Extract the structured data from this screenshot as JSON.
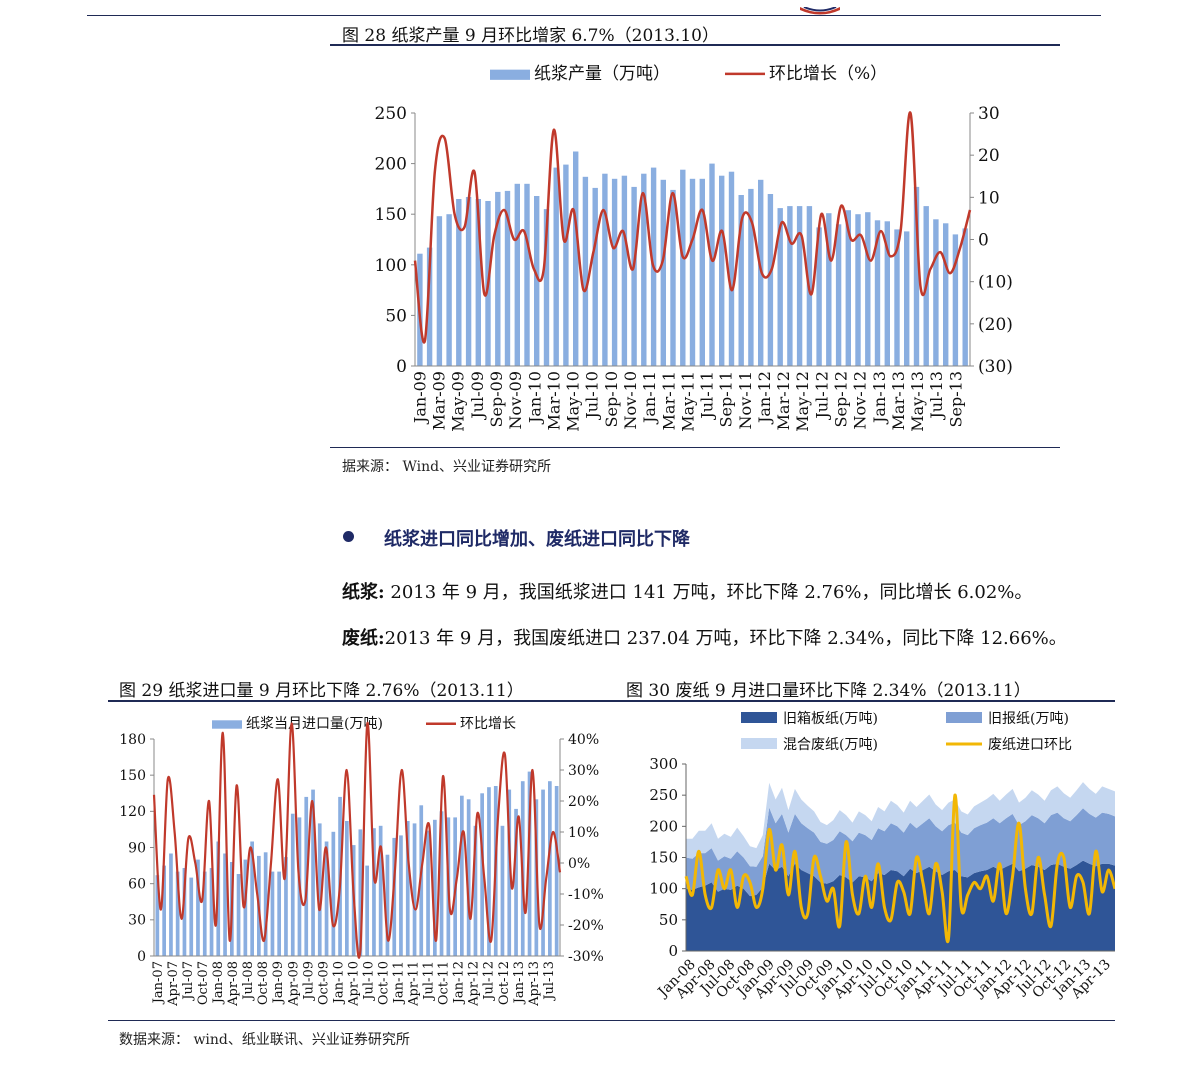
{
  "header": {
    "logo": "logo-swoosh"
  },
  "fig28": {
    "caption": "图 28  纸浆产量 9 月环比增家 6.7%（2013.10）",
    "source": "据来源：  Wind、兴业证券研究所"
  },
  "section": {
    "heading": "纸浆进口同比增加、废纸进口同比下降",
    "p1_bold": "纸浆:",
    "p1_text": " 2013 年 9 月，我国纸浆进口 141 万吨，环比下降 2.76%，同比增长 6.02%。",
    "p2_bold": "废纸:",
    "p2_text": "2013 年 9 月，我国废纸进口 237.04  万吨，环比下降 2.34%，同比下降 12.66%。"
  },
  "fig29": {
    "caption": "图 29 纸浆进口量 9 月环比下降 2.76%（2013.11）"
  },
  "fig30": {
    "caption": "图 30 废纸 9 月进口量环比下降 2.34%（2013.11）"
  },
  "footer_source": "数据来源：  wind、纸业联讯、兴业证券研究所",
  "chart_data": [
    {
      "id": "fig28",
      "type": "bar+line",
      "legend_position": "top",
      "grid": false,
      "x": [
        "Jan-09",
        "Feb-09",
        "Mar-09",
        "Apr-09",
        "May-09",
        "Jun-09",
        "Jul-09",
        "Aug-09",
        "Sep-09",
        "Oct-09",
        "Nov-09",
        "Dec-09",
        "Jan-10",
        "Feb-10",
        "Mar-10",
        "Apr-10",
        "May-10",
        "Jun-10",
        "Jul-10",
        "Aug-10",
        "Sep-10",
        "Oct-10",
        "Nov-10",
        "Dec-10",
        "Jan-11",
        "Feb-11",
        "Mar-11",
        "Apr-11",
        "May-11",
        "Jun-11",
        "Jul-11",
        "Aug-11",
        "Sep-11",
        "Oct-11",
        "Nov-11",
        "Dec-11",
        "Jan-12",
        "Feb-12",
        "Mar-12",
        "Apr-12",
        "May-12",
        "Jun-12",
        "Jul-12",
        "Aug-12",
        "Sep-12",
        "Oct-12",
        "Nov-12",
        "Dec-12",
        "Jan-13",
        "Feb-13",
        "Mar-13",
        "Apr-13",
        "May-13",
        "Jun-13",
        "Jul-13",
        "Aug-13",
        "Sep-13"
      ],
      "x_tick_labels": [
        "Jan-09",
        "Mar-09",
        "May-09",
        "Jul-09",
        "Sep-09",
        "Nov-09",
        "Jan-10",
        "Mar-10",
        "May-10",
        "Jul-10",
        "Sep-10",
        "Nov-10",
        "Jan-11",
        "Mar-11",
        "May-11",
        "Jul-11",
        "Sep-11",
        "Nov-11",
        "Jan-12",
        "Mar-12",
        "May-12",
        "Jul-12",
        "Sep-12",
        "Nov-12",
        "Jan-13",
        "Mar-13",
        "May-13",
        "Jul-13",
        "Sep-13"
      ],
      "y_left": {
        "range": [
          0,
          250
        ],
        "ticks": [
          "0",
          "50",
          "100",
          "150",
          "200",
          "250"
        ]
      },
      "y_right": {
        "range": [
          -30,
          30
        ],
        "ticks": [
          "(30)",
          "(20)",
          "(10)",
          "0",
          "10",
          "20",
          "30"
        ]
      },
      "series": [
        {
          "name": "纸浆产量（万吨）",
          "kind": "bar",
          "axis": "left",
          "color": "#8aaee0",
          "values": [
            111,
            117,
            148,
            150,
            165,
            167,
            165,
            163,
            172,
            173,
            180,
            180,
            168,
            155,
            196,
            199,
            212,
            187,
            176,
            190,
            185,
            188,
            177,
            190,
            196,
            184,
            174,
            194,
            185,
            185,
            200,
            188,
            192,
            169,
            175,
            184,
            170,
            156,
            158,
            158,
            158,
            137,
            151,
            140,
            154,
            150,
            152,
            144,
            143,
            135,
            133,
            177,
            158,
            145,
            141,
            130,
            136
          ]
        },
        {
          "name": "环比增长（%）",
          "kind": "line",
          "axis": "right",
          "color": "#c0392b",
          "values": [
            -5,
            -24,
            16,
            24,
            6,
            3,
            16,
            -13,
            1,
            7,
            0,
            2,
            -7,
            -7,
            26,
            0,
            7,
            -12,
            -3,
            7,
            -2,
            2,
            -7,
            11,
            -6,
            -5,
            11,
            -4,
            0,
            7,
            -5,
            2,
            -12,
            5,
            4,
            -8,
            -7,
            4,
            -1,
            1,
            -13,
            6,
            -5,
            8,
            0,
            1,
            -5,
            2,
            -4,
            2,
            30,
            -11,
            -7,
            -3,
            -8,
            -2,
            7
          ]
        }
      ]
    },
    {
      "id": "fig29",
      "type": "bar+line",
      "legend_position": "top",
      "grid": false,
      "x_tick_labels": [
        "Jan-07",
        "Apr-07",
        "Jul-07",
        "Oct-07",
        "Jan-08",
        "Apr-08",
        "Jul-08",
        "Oct-08",
        "Jan-09",
        "Apr-09",
        "Jul-09",
        "Oct-09",
        "Jan-10",
        "Apr-10",
        "Jul-10",
        "Oct-10",
        "Jan-11",
        "Apr-11",
        "Jul-11",
        "Oct-11",
        "Jan-12",
        "Apr-12",
        "Jul-12",
        "Oct-12",
        "Jan-13",
        "Apr-13",
        "Jul-13"
      ],
      "y_left": {
        "range": [
          0,
          180
        ],
        "ticks": [
          "0",
          "30",
          "60",
          "90",
          "120",
          "150",
          "180"
        ]
      },
      "y_right": {
        "range": [
          -30,
          40
        ],
        "ticks": [
          "-30%",
          "-20%",
          "-10%",
          "0%",
          "10%",
          "20%",
          "30%",
          "40%"
        ]
      },
      "series": [
        {
          "name": "纸浆当月进口量(万吨)",
          "kind": "bar",
          "axis": "left",
          "color": "#8aaee0",
          "values": [
            67,
            75,
            85,
            70,
            73,
            65,
            80,
            70,
            73,
            95,
            85,
            78,
            68,
            80,
            95,
            83,
            86,
            70,
            70,
            82,
            118,
            115,
            132,
            138,
            110,
            95,
            103,
            132,
            112,
            92,
            105,
            75,
            106,
            108,
            84,
            98,
            100,
            112,
            110,
            125,
            104,
            113,
            120,
            115,
            115,
            133,
            130,
            108,
            135,
            140,
            141,
            108,
            138,
            122,
            145,
            153,
            130,
            138,
            145,
            141
          ]
        },
        {
          "name": "环比增长",
          "kind": "line",
          "axis": "right",
          "color": "#c0392b",
          "values": [
            22,
            -15,
            27,
            10,
            -18,
            8,
            0,
            -12,
            20,
            -20,
            42,
            -25,
            25,
            -14,
            5,
            -10,
            -25,
            0,
            27,
            -5,
            45,
            -3,
            -12,
            20,
            -15,
            5,
            -20,
            -8,
            30,
            -10,
            -28,
            45,
            -5,
            5,
            -25,
            -3,
            30,
            0,
            -15,
            0,
            12,
            -25,
            28,
            -15,
            -5,
            10,
            -18,
            16,
            -5,
            -25,
            15,
            35,
            -8,
            15,
            -16,
            30,
            -20,
            -5,
            10,
            -3
          ]
        }
      ]
    },
    {
      "id": "fig30",
      "type": "area+line",
      "legend_position": "top",
      "grid": false,
      "x_tick_labels": [
        "Jan-08",
        "Apr-08",
        "Jul-08",
        "Oct-08",
        "Jan-09",
        "Apr-09",
        "Jul-09",
        "Oct-09",
        "Jan-10",
        "Apr-10",
        "Jul-10",
        "Oct-10",
        "Jan-11",
        "Apr-11",
        "Jul-11",
        "Oct-11",
        "Jan-12",
        "Apr-12",
        "Jul-12",
        "Oct-12",
        "Jan-13",
        "Apr-13"
      ],
      "y": {
        "range": [
          0,
          300
        ],
        "ticks": [
          "0",
          "50",
          "100",
          "150",
          "200",
          "250",
          "300"
        ]
      },
      "series": [
        {
          "name": "旧箱板纸(万吨)",
          "kind": "area",
          "color": "#2f5597",
          "values": [
            100,
            98,
            102,
            105,
            110,
            95,
            100,
            98,
            105,
            100,
            88,
            90,
            102,
            140,
            130,
            135,
            120,
            140,
            130,
            125,
            120,
            110,
            108,
            112,
            122,
            118,
            110,
            120,
            118,
            112,
            125,
            122,
            130,
            128,
            120,
            132,
            125,
            130,
            135,
            128,
            122,
            128,
            130,
            120,
            118,
            125,
            128,
            130,
            135,
            130,
            135,
            140,
            128,
            132,
            138,
            135,
            130,
            138,
            140,
            135,
            132,
            138,
            145,
            140,
            136,
            140,
            140,
            137
          ]
        },
        {
          "name": "旧报纸(万吨)",
          "kind": "area",
          "color": "#7f9fd4",
          "values": [
            50,
            50,
            55,
            52,
            55,
            50,
            52,
            50,
            55,
            50,
            48,
            45,
            50,
            90,
            75,
            85,
            70,
            80,
            75,
            72,
            70,
            65,
            64,
            66,
            70,
            68,
            66,
            70,
            68,
            66,
            72,
            70,
            75,
            72,
            70,
            74,
            72,
            75,
            78,
            72,
            70,
            74,
            76,
            70,
            68,
            72,
            74,
            76,
            78,
            75,
            78,
            80,
            74,
            76,
            80,
            78,
            75,
            80,
            82,
            78,
            76,
            80,
            84,
            80,
            78,
            82,
            80,
            79
          ]
        },
        {
          "name": "混合废纸(万吨)",
          "kind": "area",
          "color": "#c5d7f0",
          "values": [
            30,
            32,
            36,
            36,
            40,
            35,
            36,
            35,
            38,
            34,
            32,
            30,
            34,
            40,
            38,
            42,
            36,
            40,
            38,
            36,
            34,
            32,
            30,
            32,
            34,
            32,
            30,
            34,
            32,
            30,
            34,
            32,
            36,
            34,
            32,
            35,
            34,
            36,
            38,
            35,
            34,
            36,
            37,
            34,
            33,
            35,
            36,
            38,
            39,
            36,
            38,
            40,
            36,
            38,
            40,
            38,
            36,
            40,
            42,
            40,
            38,
            40,
            42,
            40,
            38,
            42,
            40,
            40
          ]
        },
        {
          "name": "废纸进口环比",
          "kind": "line",
          "color": "#f2b705",
          "values": [
            120,
            90,
            160,
            90,
            70,
            130,
            100,
            130,
            70,
            120,
            110,
            70,
            100,
            195,
            130,
            170,
            90,
            160,
            70,
            60,
            150,
            120,
            80,
            100,
            40,
            175,
            90,
            60,
            120,
            70,
            140,
            70,
            50,
            110,
            95,
            60,
            150,
            110,
            60,
            140,
            95,
            20,
            250,
            70,
            90,
            110,
            100,
            120,
            80,
            140,
            60,
            120,
            205,
            100,
            60,
            150,
            90,
            40,
            140,
            150,
            70,
            120,
            110,
            60,
            160,
            95,
            130,
            100
          ]
        }
      ]
    }
  ]
}
